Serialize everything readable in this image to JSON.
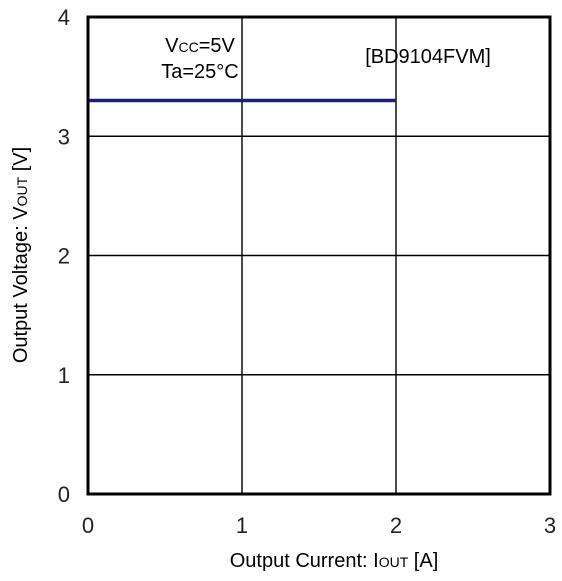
{
  "chart_data": {
    "type": "line",
    "title": "",
    "xlabel": {
      "prefix": "Output Current: I",
      "sub": "OUT",
      "suffix": " [A]"
    },
    "ylabel": {
      "prefix": "Output Voltage: V",
      "sub": "OUT",
      "suffix": " [V]"
    },
    "xlim": [
      0,
      3
    ],
    "ylim": [
      0,
      4
    ],
    "xticks": [
      "0",
      "1",
      "2",
      "3"
    ],
    "yticks": [
      "0",
      "1",
      "2",
      "3",
      "4"
    ],
    "grid": true,
    "series": [
      {
        "x": [
          0,
          2
        ],
        "y": [
          3.3,
          3.3
        ],
        "color": "#1a1f7a"
      }
    ],
    "annotations": {
      "conditions_line1": {
        "prefix": "V",
        "sub": "CC",
        "suffix": "=5V"
      },
      "conditions_line2": "Ta=25°C",
      "part_number": "[BD9104FVM]"
    }
  }
}
